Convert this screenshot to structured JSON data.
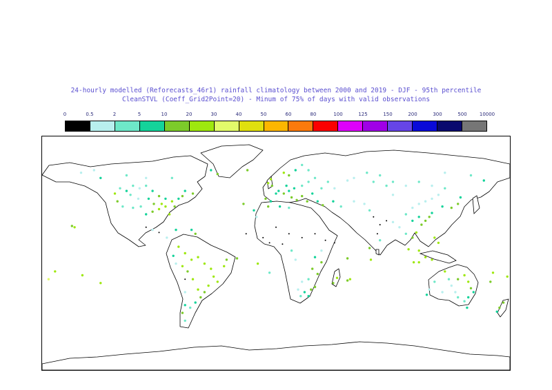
{
  "title": {
    "line1": "24-hourly modelled (Reforecasts_46r1) rainfall climatology between 2000 and 2019 - DJF - 95th percentile",
    "line2": "CleanSTVL (Coeff_Grid2Point=20) - Minum of 75% of days with valid observations"
  },
  "legend": {
    "labels": [
      "0",
      "0.5",
      "2",
      "5",
      "10",
      "20",
      "30",
      "40",
      "50",
      "60",
      "80",
      "100",
      "125",
      "150",
      "200",
      "300",
      "500",
      "10000"
    ],
    "colors": [
      "#000000",
      "#b8efee",
      "#6ee8c8",
      "#14d39a",
      "#7ccb2a",
      "#9ee80e",
      "#e2fb6a",
      "#e0e00e",
      "#fcb600",
      "#fb7a0c",
      "#fb0000",
      "#de00fb",
      "#a000e6",
      "#6645e6",
      "#0a0ad8",
      "#0a0a6e",
      "#767676"
    ]
  },
  "map": {
    "projection": "equirectangular",
    "extent": {
      "lon": [
        -180,
        180
      ],
      "lat": [
        -90,
        90
      ]
    },
    "stations": [
      {
        "lon": -120,
        "lat": 50,
        "cls": 2
      },
      {
        "lon": -115,
        "lat": 48,
        "cls": 3
      },
      {
        "lon": -110,
        "lat": 52,
        "cls": 2
      },
      {
        "lon": -105,
        "lat": 50,
        "cls": 1
      },
      {
        "lon": -100,
        "lat": 52,
        "cls": 2
      },
      {
        "lon": -95,
        "lat": 48,
        "cls": 3
      },
      {
        "lon": -112,
        "lat": 45,
        "cls": 2
      },
      {
        "lon": -106,
        "lat": 42,
        "cls": 1
      },
      {
        "lon": -98,
        "lat": 42,
        "cls": 3
      },
      {
        "lon": -90,
        "lat": 44,
        "cls": 4
      },
      {
        "lon": -85,
        "lat": 42,
        "cls": 3
      },
      {
        "lon": -80,
        "lat": 40,
        "cls": 5
      },
      {
        "lon": -85,
        "lat": 36,
        "cls": 5
      },
      {
        "lon": -90,
        "lat": 34,
        "cls": 5
      },
      {
        "lon": -95,
        "lat": 32,
        "cls": 4
      },
      {
        "lon": -100,
        "lat": 30,
        "cls": 3
      },
      {
        "lon": -82,
        "lat": 30,
        "cls": 5
      },
      {
        "lon": -78,
        "lat": 36,
        "cls": 4
      },
      {
        "lon": -75,
        "lat": 42,
        "cls": 3
      },
      {
        "lon": -72,
        "lat": 44,
        "cls": 4
      },
      {
        "lon": -118,
        "lat": 36,
        "cls": 2
      },
      {
        "lon": -122,
        "lat": 40,
        "cls": 4
      },
      {
        "lon": -124,
        "lat": 46,
        "cls": 5
      },
      {
        "lon": -110,
        "lat": 35,
        "cls": 2
      },
      {
        "lon": -104,
        "lat": 36,
        "cls": 2
      },
      {
        "lon": -94,
        "lat": 38,
        "cls": 4
      },
      {
        "lon": -88,
        "lat": 38,
        "cls": 5
      },
      {
        "lon": -150,
        "lat": 62,
        "cls": 1
      },
      {
        "lon": -140,
        "lat": 64,
        "cls": 1
      },
      {
        "lon": -135,
        "lat": 58,
        "cls": 3
      },
      {
        "lon": -115,
        "lat": 60,
        "cls": 2
      },
      {
        "lon": -100,
        "lat": 58,
        "cls": 1
      },
      {
        "lon": -80,
        "lat": 58,
        "cls": 2
      },
      {
        "lon": -70,
        "lat": 48,
        "cls": 3
      },
      {
        "lon": -64,
        "lat": 46,
        "cls": 4
      },
      {
        "lon": -100,
        "lat": 20,
        "cls": 0
      },
      {
        "lon": -95,
        "lat": 18,
        "cls": 1
      },
      {
        "lon": -90,
        "lat": 16,
        "cls": 0
      },
      {
        "lon": -84,
        "lat": 12,
        "cls": 1
      },
      {
        "lon": -75,
        "lat": 5,
        "cls": 5
      },
      {
        "lon": -70,
        "lat": 0,
        "cls": 5
      },
      {
        "lon": -65,
        "lat": -5,
        "cls": 5
      },
      {
        "lon": -60,
        "lat": -3,
        "cls": 5
      },
      {
        "lon": -55,
        "lat": -8,
        "cls": 5
      },
      {
        "lon": -50,
        "lat": -12,
        "cls": 5
      },
      {
        "lon": -48,
        "lat": -18,
        "cls": 5
      },
      {
        "lon": -45,
        "lat": -22,
        "cls": 5
      },
      {
        "lon": -52,
        "lat": -25,
        "cls": 5
      },
      {
        "lon": -55,
        "lat": -30,
        "cls": 4
      },
      {
        "lon": -60,
        "lat": -28,
        "cls": 5
      },
      {
        "lon": -64,
        "lat": -20,
        "cls": 5
      },
      {
        "lon": -68,
        "lat": -14,
        "cls": 4
      },
      {
        "lon": -72,
        "lat": -10,
        "cls": 5
      },
      {
        "lon": -40,
        "lat": -10,
        "cls": 5
      },
      {
        "lon": -38,
        "lat": -5,
        "cls": 4
      },
      {
        "lon": -58,
        "lat": -34,
        "cls": 4
      },
      {
        "lon": -62,
        "lat": -38,
        "cls": 3
      },
      {
        "lon": -66,
        "lat": -42,
        "cls": 2
      },
      {
        "lon": -70,
        "lat": -40,
        "cls": 3
      },
      {
        "lon": -72,
        "lat": -46,
        "cls": 4
      },
      {
        "lon": -70,
        "lat": -52,
        "cls": 2
      },
      {
        "lon": -70,
        "lat": -30,
        "cls": 1
      },
      {
        "lon": -70,
        "lat": -20,
        "cls": 0
      },
      {
        "lon": -77,
        "lat": -8,
        "cls": 1
      },
      {
        "lon": -79,
        "lat": -2,
        "cls": 3
      },
      {
        "lon": -8,
        "lat": 42,
        "cls": 4
      },
      {
        "lon": -4,
        "lat": 40,
        "cls": 3
      },
      {
        "lon": 0,
        "lat": 46,
        "cls": 3
      },
      {
        "lon": -3,
        "lat": 52,
        "cls": 4
      },
      {
        "lon": -6,
        "lat": 54,
        "cls": 5
      },
      {
        "lon": -4,
        "lat": 57,
        "cls": 5
      },
      {
        "lon": 2,
        "lat": 48,
        "cls": 3
      },
      {
        "lon": 6,
        "lat": 46,
        "cls": 4
      },
      {
        "lon": 10,
        "lat": 48,
        "cls": 3
      },
      {
        "lon": 8,
        "lat": 52,
        "cls": 3
      },
      {
        "lon": 14,
        "lat": 50,
        "cls": 3
      },
      {
        "lon": 20,
        "lat": 52,
        "cls": 2
      },
      {
        "lon": 25,
        "lat": 55,
        "cls": 2
      },
      {
        "lon": 30,
        "lat": 58,
        "cls": 2
      },
      {
        "lon": 10,
        "lat": 60,
        "cls": 4
      },
      {
        "lon": 6,
        "lat": 62,
        "cls": 5
      },
      {
        "lon": 15,
        "lat": 64,
        "cls": 3
      },
      {
        "lon": 25,
        "lat": 64,
        "cls": 2
      },
      {
        "lon": 20,
        "lat": 68,
        "cls": 2
      },
      {
        "lon": 12,
        "lat": 43,
        "cls": 4
      },
      {
        "lon": 16,
        "lat": 41,
        "cls": 4
      },
      {
        "lon": 20,
        "lat": 44,
        "cls": 4
      },
      {
        "lon": 24,
        "lat": 40,
        "cls": 4
      },
      {
        "lon": 28,
        "lat": 46,
        "cls": 3
      },
      {
        "lon": 35,
        "lat": 50,
        "cls": 2
      },
      {
        "lon": 40,
        "lat": 55,
        "cls": 2
      },
      {
        "lon": 45,
        "lat": 50,
        "cls": 1
      },
      {
        "lon": 32,
        "lat": 40,
        "cls": 3
      },
      {
        "lon": 36,
        "lat": 37,
        "cls": 4
      },
      {
        "lon": 44,
        "lat": 40,
        "cls": 3
      },
      {
        "lon": 50,
        "lat": 36,
        "cls": 2
      },
      {
        "lon": 55,
        "lat": 56,
        "cls": 1
      },
      {
        "lon": 60,
        "lat": 58,
        "cls": 1
      },
      {
        "lon": -6,
        "lat": 36,
        "cls": 4
      },
      {
        "lon": 3,
        "lat": 36,
        "cls": 3
      },
      {
        "lon": 10,
        "lat": 35,
        "cls": 2
      },
      {
        "lon": -15,
        "lat": 28,
        "cls": 1
      },
      {
        "lon": 0,
        "lat": 20,
        "cls": 0
      },
      {
        "lon": 10,
        "lat": 15,
        "cls": 0
      },
      {
        "lon": 20,
        "lat": 12,
        "cls": 0
      },
      {
        "lon": -10,
        "lat": 12,
        "cls": 0
      },
      {
        "lon": -5,
        "lat": 8,
        "cls": 0
      },
      {
        "lon": 5,
        "lat": 7,
        "cls": 0
      },
      {
        "lon": 30,
        "lat": 15,
        "cls": 0
      },
      {
        "lon": 38,
        "lat": 10,
        "cls": 0
      },
      {
        "lon": 45,
        "lat": 8,
        "cls": 0
      },
      {
        "lon": 35,
        "lat": 2,
        "cls": 1
      },
      {
        "lon": 30,
        "lat": -3,
        "cls": 3
      },
      {
        "lon": 35,
        "lat": -7,
        "cls": 4
      },
      {
        "lon": 28,
        "lat": -12,
        "cls": 4
      },
      {
        "lon": 32,
        "lat": -16,
        "cls": 4
      },
      {
        "lon": 25,
        "lat": -20,
        "cls": 2
      },
      {
        "lon": 20,
        "lat": -22,
        "cls": 1
      },
      {
        "lon": 17,
        "lat": -28,
        "cls": 1
      },
      {
        "lon": 22,
        "lat": -30,
        "cls": 3
      },
      {
        "lon": 27,
        "lat": -28,
        "cls": 4
      },
      {
        "lon": 30,
        "lat": -26,
        "cls": 4
      },
      {
        "lon": 25,
        "lat": -33,
        "cls": 3
      },
      {
        "lon": 19,
        "lat": -33,
        "cls": 2
      },
      {
        "lon": 47,
        "lat": -19,
        "cls": 5
      },
      {
        "lon": 44,
        "lat": -23,
        "cls": 4
      },
      {
        "lon": 57,
        "lat": -20,
        "cls": 5
      },
      {
        "lon": 55,
        "lat": -21,
        "cls": 4
      },
      {
        "lon": 15,
        "lat": -5,
        "cls": 1
      },
      {
        "lon": 12,
        "lat": 2,
        "cls": 2
      },
      {
        "lon": 60,
        "lat": 40,
        "cls": 1
      },
      {
        "lon": 68,
        "lat": 38,
        "cls": 1
      },
      {
        "lon": 72,
        "lat": 33,
        "cls": 2
      },
      {
        "lon": 75,
        "lat": 28,
        "cls": 0
      },
      {
        "lon": 80,
        "lat": 22,
        "cls": 0
      },
      {
        "lon": 78,
        "lat": 15,
        "cls": 0
      },
      {
        "lon": 80,
        "lat": 10,
        "cls": 2
      },
      {
        "lon": 85,
        "lat": 25,
        "cls": 0
      },
      {
        "lon": 90,
        "lat": 24,
        "cls": 1
      },
      {
        "lon": 95,
        "lat": 20,
        "cls": 1
      },
      {
        "lon": 100,
        "lat": 15,
        "cls": 2
      },
      {
        "lon": 105,
        "lat": 12,
        "cls": 4
      },
      {
        "lon": 108,
        "lat": 16,
        "cls": 5
      },
      {
        "lon": 102,
        "lat": 3,
        "cls": 5
      },
      {
        "lon": 110,
        "lat": 2,
        "cls": 5
      },
      {
        "lon": 115,
        "lat": -3,
        "cls": 5
      },
      {
        "lon": 120,
        "lat": -5,
        "cls": 5
      },
      {
        "lon": 106,
        "lat": -7,
        "cls": 5
      },
      {
        "lon": 110,
        "lat": -7,
        "cls": 5
      },
      {
        "lon": 122,
        "lat": 12,
        "cls": 5
      },
      {
        "lon": 125,
        "lat": 8,
        "cls": 5
      },
      {
        "lon": 105,
        "lat": 25,
        "cls": 3
      },
      {
        "lon": 110,
        "lat": 28,
        "cls": 3
      },
      {
        "lon": 115,
        "lat": 25,
        "cls": 4
      },
      {
        "lon": 118,
        "lat": 28,
        "cls": 4
      },
      {
        "lon": 120,
        "lat": 31,
        "cls": 3
      },
      {
        "lon": 112,
        "lat": 22,
        "cls": 4
      },
      {
        "lon": 100,
        "lat": 30,
        "cls": 2
      },
      {
        "lon": 105,
        "lat": 35,
        "cls": 1
      },
      {
        "lon": 110,
        "lat": 38,
        "cls": 1
      },
      {
        "lon": 115,
        "lat": 40,
        "cls": 1
      },
      {
        "lon": 120,
        "lat": 42,
        "cls": 1
      },
      {
        "lon": 125,
        "lat": 45,
        "cls": 1
      },
      {
        "lon": 128,
        "lat": 36,
        "cls": 3
      },
      {
        "lon": 135,
        "lat": 35,
        "cls": 4
      },
      {
        "lon": 140,
        "lat": 38,
        "cls": 4
      },
      {
        "lon": 142,
        "lat": 43,
        "cls": 3
      },
      {
        "lon": 90,
        "lat": 45,
        "cls": 1
      },
      {
        "lon": 85,
        "lat": 52,
        "cls": 2
      },
      {
        "lon": 90,
        "lat": 55,
        "cls": 2
      },
      {
        "lon": 100,
        "lat": 52,
        "cls": 1
      },
      {
        "lon": 110,
        "lat": 55,
        "cls": 2
      },
      {
        "lon": 120,
        "lat": 52,
        "cls": 1
      },
      {
        "lon": 130,
        "lat": 50,
        "cls": 2
      },
      {
        "lon": 75,
        "lat": 55,
        "cls": 2
      },
      {
        "lon": 80,
        "lat": 60,
        "cls": 2
      },
      {
        "lon": 70,
        "lat": 62,
        "cls": 2
      },
      {
        "lon": 130,
        "lat": 62,
        "cls": 1
      },
      {
        "lon": 150,
        "lat": 60,
        "cls": 2
      },
      {
        "lon": 160,
        "lat": 56,
        "cls": 3
      },
      {
        "lon": 116,
        "lat": -32,
        "cls": 3
      },
      {
        "lon": 118,
        "lat": -28,
        "cls": 1
      },
      {
        "lon": 122,
        "lat": -22,
        "cls": 2
      },
      {
        "lon": 130,
        "lat": -14,
        "cls": 5
      },
      {
        "lon": 133,
        "lat": -20,
        "cls": 2
      },
      {
        "lon": 135,
        "lat": -25,
        "cls": 1
      },
      {
        "lon": 140,
        "lat": -20,
        "cls": 4
      },
      {
        "lon": 145,
        "lat": -17,
        "cls": 5
      },
      {
        "lon": 148,
        "lat": -22,
        "cls": 5
      },
      {
        "lon": 150,
        "lat": -27,
        "cls": 4
      },
      {
        "lon": 152,
        "lat": -30,
        "cls": 3
      },
      {
        "lon": 148,
        "lat": -34,
        "cls": 3
      },
      {
        "lon": 145,
        "lat": -37,
        "cls": 2
      },
      {
        "lon": 140,
        "lat": -34,
        "cls": 2
      },
      {
        "lon": 138,
        "lat": -30,
        "cls": 1
      },
      {
        "lon": 128,
        "lat": -30,
        "cls": 1
      },
      {
        "lon": 147,
        "lat": -42,
        "cls": 3
      },
      {
        "lon": 172,
        "lat": -42,
        "cls": 4
      },
      {
        "lon": 175,
        "lat": -38,
        "cls": 4
      },
      {
        "lon": 170,
        "lat": -45,
        "cls": 3
      },
      {
        "lon": 178,
        "lat": -18,
        "cls": 5
      },
      {
        "lon": 167,
        "lat": -15,
        "cls": 5
      },
      {
        "lon": 165,
        "lat": -22,
        "cls": 4
      },
      {
        "lon": -155,
        "lat": 20,
        "cls": 5
      },
      {
        "lon": -157,
        "lat": 21,
        "cls": 4
      },
      {
        "lon": -149,
        "lat": -17,
        "cls": 5
      },
      {
        "lon": -170,
        "lat": -14,
        "cls": 5
      },
      {
        "lon": -175,
        "lat": -20,
        "cls": 6
      },
      {
        "lon": -135,
        "lat": -23,
        "cls": 5
      },
      {
        "lon": -25,
        "lat": 38,
        "cls": 4
      },
      {
        "lon": -17,
        "lat": 33,
        "cls": 3
      },
      {
        "lon": -23,
        "lat": 15,
        "cls": 0
      },
      {
        "lon": -14,
        "lat": -8,
        "cls": 5
      },
      {
        "lon": -5,
        "lat": -15,
        "cls": 2
      },
      {
        "lon": -30,
        "lat": -4,
        "cls": 4
      },
      {
        "lon": 72,
        "lat": 4,
        "cls": 4
      },
      {
        "lon": 73,
        "lat": -5,
        "cls": 5
      },
      {
        "lon": 55,
        "lat": -4,
        "cls": 4
      },
      {
        "lon": -65,
        "lat": 18,
        "cls": 3
      },
      {
        "lon": -62,
        "lat": 15,
        "cls": 4
      },
      {
        "lon": -77,
        "lat": 18,
        "cls": 3
      },
      {
        "lon": -22,
        "lat": 64,
        "cls": 4
      },
      {
        "lon": -50,
        "lat": 64,
        "cls": 3
      },
      {
        "lon": -45,
        "lat": 61,
        "cls": 4
      }
    ]
  }
}
